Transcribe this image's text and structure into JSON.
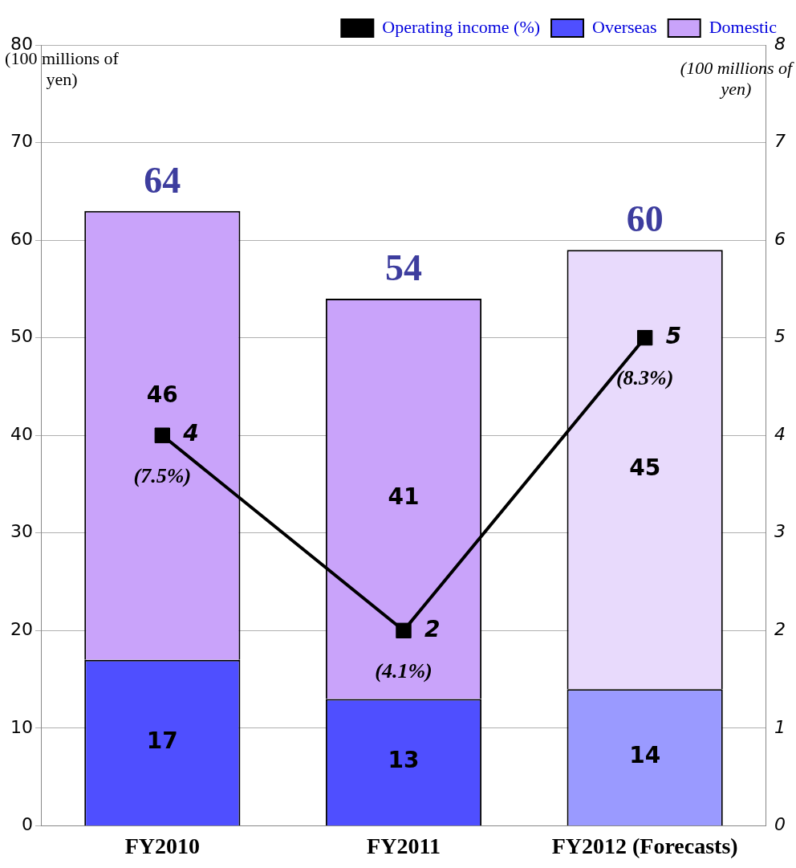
{
  "chart_data": {
    "type": "bar",
    "stacked": true,
    "categories": [
      "FY2010",
      "FY2011",
      "FY2012 (Forecasts)"
    ],
    "series": [
      {
        "name": "Operating income (%)",
        "type": "line",
        "axis": "y2",
        "color": "#000000",
        "marker": "square",
        "values": [
          4,
          2,
          5
        ]
      },
      {
        "name": "Overseas",
        "color": "#4f4fff",
        "colors": [
          "#4f4fff",
          "#4f4fff",
          "#9a9aff"
        ],
        "values": [
          17,
          13,
          14
        ]
      },
      {
        "name": "Domestic",
        "color": "#c9a3fa",
        "colors": [
          "#c9a3fa",
          "#c9a3fa",
          "#e8dafc"
        ],
        "values": [
          46,
          41,
          45
        ]
      }
    ],
    "totals": [
      "64",
      "54",
      "60"
    ],
    "data_labels": true,
    "annotations": [
      "(7.5%)",
      "(4.1%)",
      "(8.3%)"
    ],
    "ylabel": "(100 millions of yen)",
    "y2label": "(100 millions of yen)",
    "ylim": [
      0,
      80
    ],
    "yticks": [
      0,
      10,
      20,
      30,
      40,
      50,
      60,
      70,
      80
    ],
    "y2lim": [
      0,
      8
    ],
    "y2ticks": [
      0,
      1,
      2,
      3,
      4,
      5,
      6,
      7,
      8
    ],
    "grid": "y",
    "legend": "top right"
  }
}
